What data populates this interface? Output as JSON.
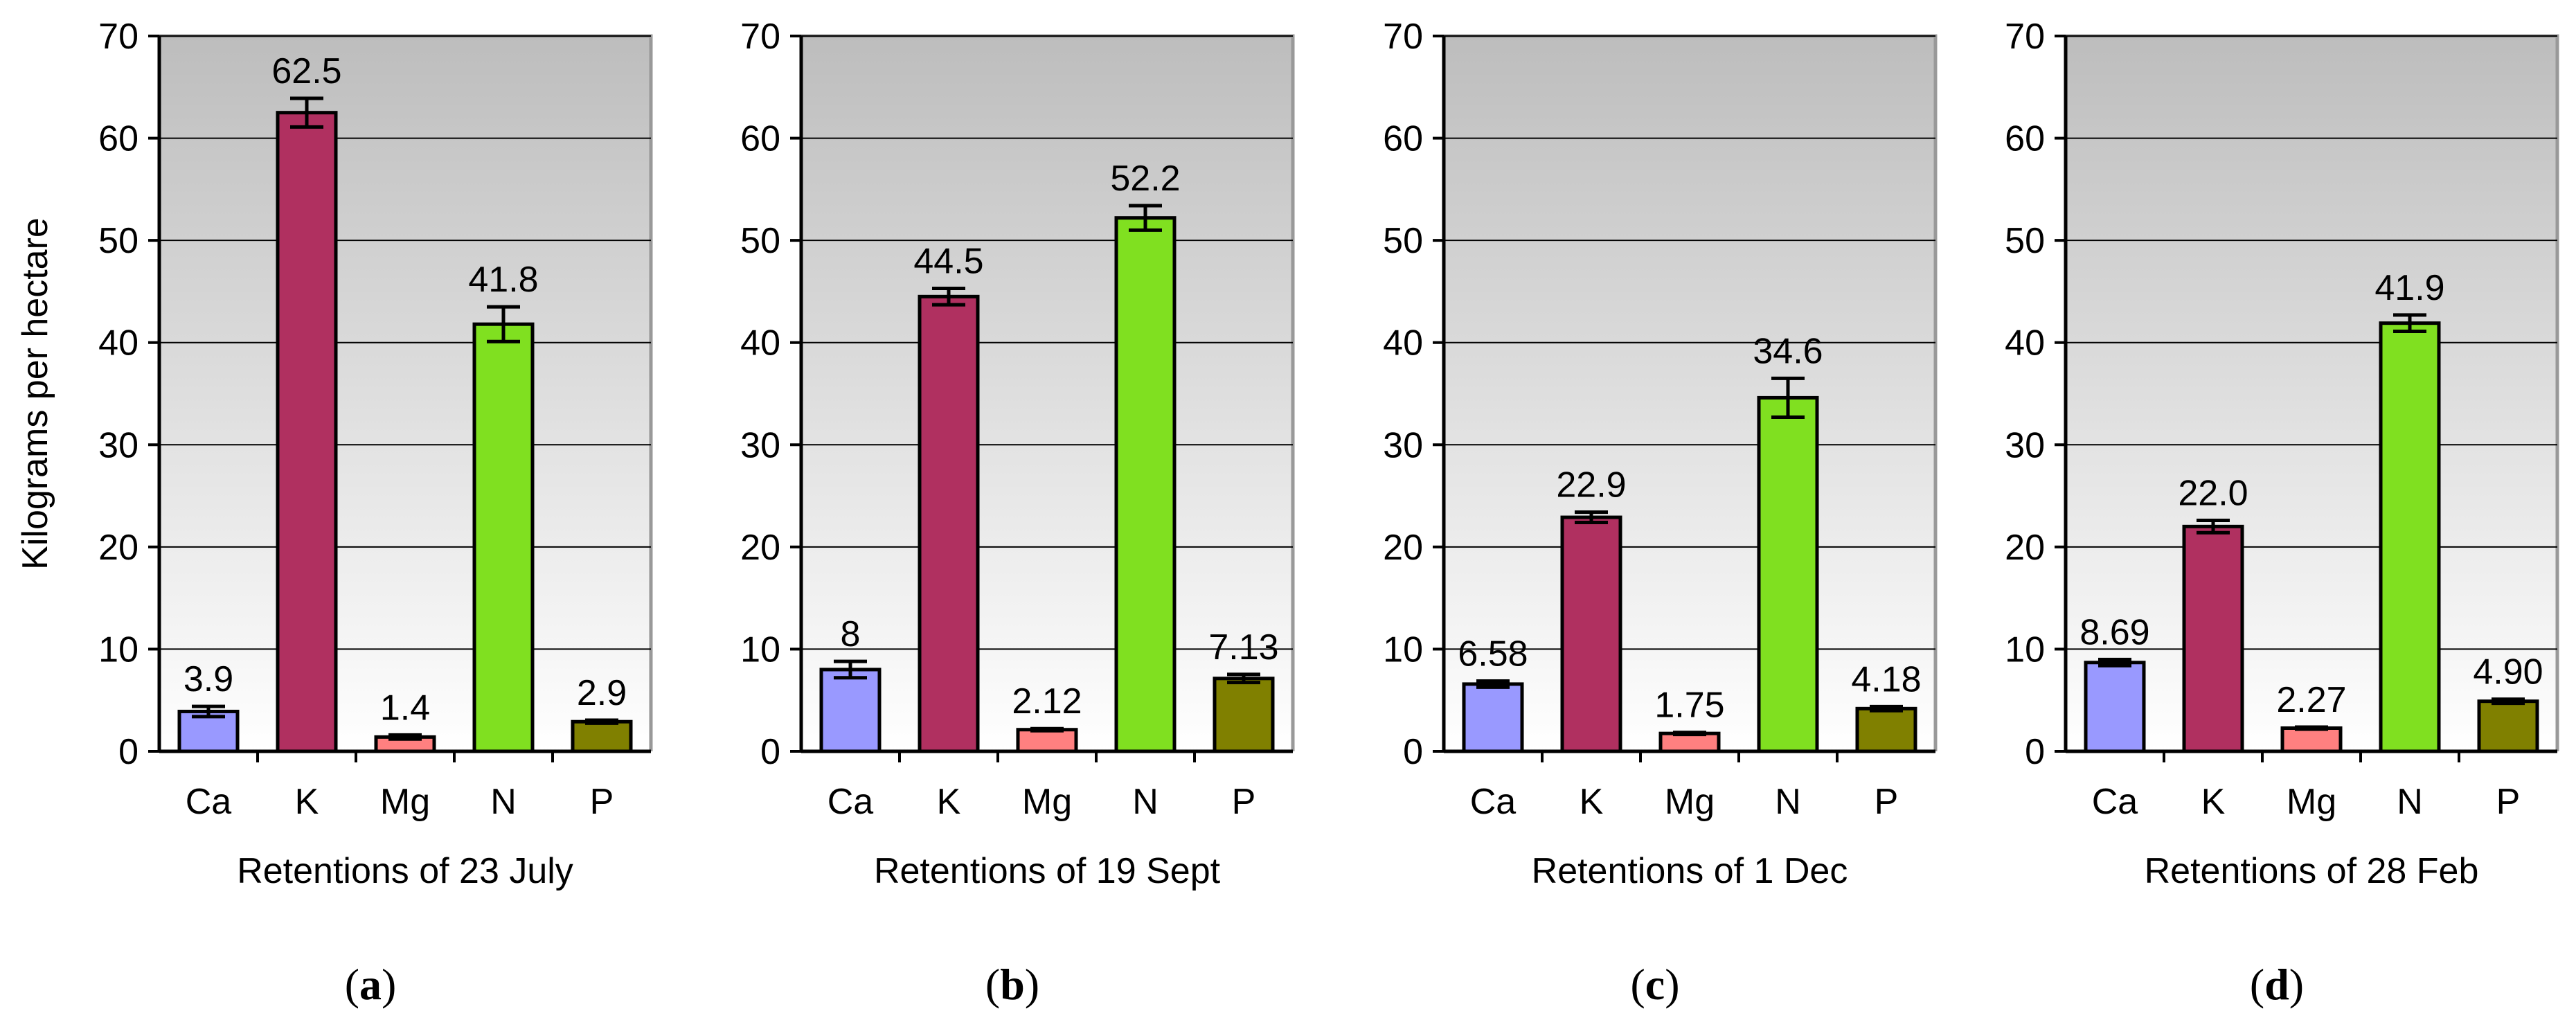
{
  "chart_data": [
    {
      "type": "bar",
      "panel_label": "(a)",
      "panel_letter": "a",
      "xlabel": "Retentions of 23 July",
      "ylabel": "Kilograms per hectare",
      "ylim": [
        0,
        70
      ],
      "yticks": [
        "0",
        "10",
        "20",
        "30",
        "40",
        "50",
        "60",
        "70"
      ],
      "categories": [
        "Ca",
        "K",
        "Mg",
        "N",
        "P"
      ],
      "values": [
        3.9,
        62.5,
        1.4,
        41.8,
        2.9
      ],
      "error": [
        0.5,
        1.4,
        0.2,
        1.7,
        0.15
      ],
      "data_labels": [
        "3.9",
        "62.5",
        "1.4",
        "41.8",
        "2.9"
      ],
      "colors": [
        "#9999ff",
        "#b03060",
        "#ff8080",
        "#80e020",
        "#808000"
      ],
      "grid": true
    },
    {
      "type": "bar",
      "panel_label": "(b)",
      "panel_letter": "b",
      "xlabel": "Retentions of 19 Sept",
      "ylabel": "",
      "ylim": [
        0,
        70
      ],
      "yticks": [
        "0",
        "10",
        "20",
        "30",
        "40",
        "50",
        "60",
        "70"
      ],
      "categories": [
        "Ca",
        "K",
        "Mg",
        "N",
        "P"
      ],
      "values": [
        8,
        44.5,
        2.12,
        52.2,
        7.13
      ],
      "error": [
        0.8,
        0.8,
        0.1,
        1.2,
        0.4
      ],
      "data_labels": [
        "8",
        "44.5",
        "2.12",
        "52.2",
        "7.13"
      ],
      "colors": [
        "#9999ff",
        "#b03060",
        "#ff8080",
        "#80e020",
        "#808000"
      ],
      "grid": true
    },
    {
      "type": "bar",
      "panel_label": "(c)",
      "panel_letter": "c",
      "xlabel": "Retentions of 1 Dec",
      "ylabel": "",
      "ylim": [
        0,
        70
      ],
      "yticks": [
        "0",
        "10",
        "20",
        "30",
        "40",
        "50",
        "60",
        "70"
      ],
      "categories": [
        "Ca",
        "K",
        "Mg",
        "N",
        "P"
      ],
      "values": [
        6.58,
        22.9,
        1.75,
        34.6,
        4.18
      ],
      "error": [
        0.3,
        0.5,
        0.1,
        1.9,
        0.2
      ],
      "data_labels": [
        "6.58",
        "22.9",
        "1.75",
        "34.6",
        "4.18"
      ],
      "colors": [
        "#9999ff",
        "#b03060",
        "#ff8080",
        "#80e020",
        "#808000"
      ],
      "grid": true
    },
    {
      "type": "bar",
      "panel_label": "(d)",
      "panel_letter": "d",
      "xlabel": "Retentions of 28 Feb",
      "ylabel": "",
      "ylim": [
        0,
        70
      ],
      "yticks": [
        "0",
        "10",
        "20",
        "30",
        "40",
        "50",
        "60",
        "70"
      ],
      "categories": [
        "Ca",
        "K",
        "Mg",
        "N",
        "P"
      ],
      "values": [
        8.69,
        22.0,
        2.27,
        41.9,
        4.9
      ],
      "error": [
        0.3,
        0.6,
        0.1,
        0.8,
        0.2
      ],
      "data_labels": [
        "8.69",
        "22.0",
        "2.27",
        "41.9",
        "4.90"
      ],
      "colors": [
        "#9999ff",
        "#b03060",
        "#ff8080",
        "#80e020",
        "#808000"
      ],
      "grid": true
    }
  ]
}
